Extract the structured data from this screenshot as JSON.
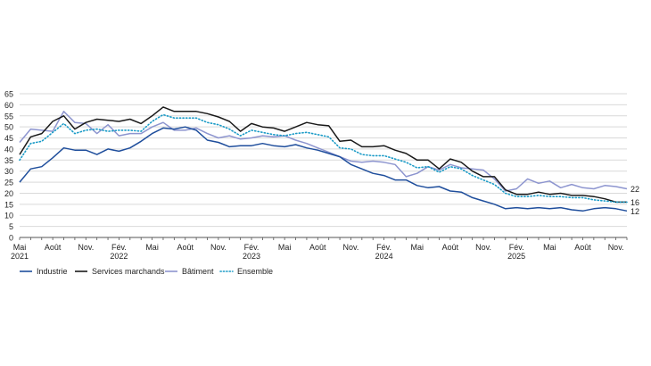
{
  "chart_data": {
    "type": "line",
    "y_ticks": [
      0,
      5,
      10,
      15,
      20,
      25,
      30,
      35,
      40,
      45,
      50,
      55,
      60,
      65
    ],
    "ylim": [
      0,
      65
    ],
    "grid": true,
    "x_tick_labels": [
      {
        "index": 0,
        "line1": "Mai",
        "line2": "2021"
      },
      {
        "index": 3,
        "line1": "Août",
        "line2": ""
      },
      {
        "index": 6,
        "line1": "Nov.",
        "line2": ""
      },
      {
        "index": 9,
        "line1": "Fév.",
        "line2": "2022"
      },
      {
        "index": 12,
        "line1": "Mai",
        "line2": ""
      },
      {
        "index": 15,
        "line1": "Août",
        "line2": ""
      },
      {
        "index": 18,
        "line1": "Nov.",
        "line2": ""
      },
      {
        "index": 21,
        "line1": "Fév.",
        "line2": "2023"
      },
      {
        "index": 24,
        "line1": "Mai",
        "line2": ""
      },
      {
        "index": 27,
        "line1": "Août",
        "line2": ""
      },
      {
        "index": 30,
        "line1": "Nov.",
        "line2": ""
      },
      {
        "index": 33,
        "line1": "Fév.",
        "line2": "2024"
      },
      {
        "index": 36,
        "line1": "Mai",
        "line2": ""
      },
      {
        "index": 39,
        "line1": "Août",
        "line2": ""
      },
      {
        "index": 42,
        "line1": "Nov.",
        "line2": ""
      },
      {
        "index": 45,
        "line1": "Fév.",
        "line2": "2025"
      },
      {
        "index": 48,
        "line1": "Mai",
        "line2": ""
      },
      {
        "index": 51,
        "line1": "Août",
        "line2": ""
      },
      {
        "index": 54,
        "line1": "Nov.",
        "line2": ""
      }
    ],
    "series": [
      {
        "name": "Industrie",
        "color": "#1f4e9c",
        "style": "solid",
        "end_label": "12",
        "values": [
          25,
          31,
          32,
          36,
          40.5,
          39.5,
          39.5,
          37.5,
          40,
          39,
          40.5,
          43.5,
          47,
          49.5,
          49,
          50,
          48.5,
          44,
          43,
          41,
          41.5,
          41.5,
          42.5,
          41.5,
          41,
          42,
          40.5,
          39.5,
          38,
          36.5,
          33,
          31,
          29,
          28,
          26,
          26,
          23.5,
          22.5,
          23,
          21,
          20.5,
          18,
          16.5,
          15,
          13,
          13.5,
          13,
          13.5,
          13,
          13.5,
          12.5,
          12,
          13,
          13.5,
          13,
          12
        ]
      },
      {
        "name": "Services marchands",
        "color": "#1a1a1a",
        "style": "solid",
        "end_label": "16",
        "values": [
          37.5,
          45.5,
          47,
          52.5,
          55,
          49,
          52,
          53.5,
          53,
          52.5,
          53.5,
          51.5,
          55,
          59,
          57,
          57,
          57,
          56,
          54.5,
          52.5,
          48,
          51.5,
          50,
          49.5,
          48,
          50,
          52,
          51,
          50.5,
          43.5,
          44,
          41,
          41,
          41.5,
          39.5,
          38,
          35,
          35,
          31,
          35.5,
          34,
          30,
          27.5,
          27.5,
          21.5,
          19.5,
          19.5,
          20.5,
          19.5,
          20,
          19,
          19,
          18.5,
          17.5,
          16,
          16
        ]
      },
      {
        "name": "Bâtiment",
        "color": "#8d95cf",
        "style": "solid",
        "end_label": "22",
        "values": [
          43,
          49,
          48.5,
          48,
          57,
          52,
          51.5,
          47,
          51,
          46,
          47,
          47,
          50,
          52,
          48.5,
          48.5,
          49.5,
          47,
          45,
          46,
          44.5,
          45,
          46,
          45.5,
          46,
          44,
          42.5,
          40.5,
          38.5,
          36.5,
          34.5,
          34,
          34.5,
          34,
          33,
          27.5,
          29,
          32,
          30.5,
          33,
          31.5,
          31,
          30.5,
          26.5,
          21,
          22,
          26.5,
          24.5,
          25.5,
          22.5,
          24,
          22.5,
          22,
          23.5,
          23,
          22
        ]
      },
      {
        "name": "Ensemble",
        "color": "#1b9bc7",
        "style": "dotted",
        "end_label": "",
        "values": [
          35,
          42.5,
          43.5,
          47.5,
          51.5,
          47,
          48.5,
          49,
          48,
          48.5,
          48.5,
          48,
          52.5,
          55.5,
          54,
          54,
          54,
          52,
          51,
          49,
          46,
          48.5,
          47.5,
          46.5,
          46,
          47,
          47.5,
          46.5,
          45.5,
          40.5,
          40,
          37.5,
          37,
          37,
          35.5,
          34,
          31.5,
          32,
          29.5,
          32,
          31,
          28,
          26,
          24,
          20,
          18.5,
          18.5,
          19,
          18.5,
          18.5,
          18,
          18,
          17,
          16.5,
          16,
          16
        ]
      }
    ]
  }
}
